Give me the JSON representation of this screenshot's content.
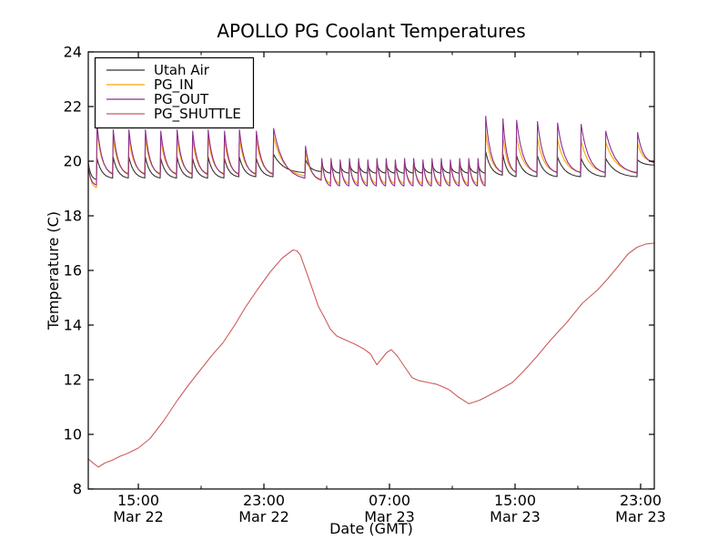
{
  "chart_data": {
    "type": "line",
    "title": "APOLLO PG Coolant Temperatures",
    "xlabel": "Date (GMT)",
    "ylabel": "Temperature (C)",
    "ylim": [
      8,
      24
    ],
    "xlim": [
      11.81,
      47.87
    ],
    "x_unit": "hours since Mar 22 00:00 GMT",
    "grid": false,
    "legend_position": "upper left",
    "yticks": [
      8,
      10,
      12,
      14,
      16,
      18,
      20,
      22,
      24
    ],
    "xticks": [
      {
        "t": 15,
        "time": "15:00",
        "date": "Mar 22"
      },
      {
        "t": 23,
        "time": "23:00",
        "date": "Mar 22"
      },
      {
        "t": 31,
        "time": "07:00",
        "date": "Mar 23"
      },
      {
        "t": 39,
        "time": "15:00",
        "date": "Mar 23"
      },
      {
        "t": 47,
        "time": "23:00",
        "date": "Mar 23"
      }
    ],
    "xminorticks": [
      19,
      27,
      35,
      43
    ],
    "series": [
      {
        "name": "Utah Air",
        "color": "#333333",
        "kind": "spiky",
        "start": [
          11.81,
          19.95,
          19.3
        ],
        "end": [
          47.87
        ],
        "spikes": [
          [
            12.33,
            20.1,
            19.35
          ],
          [
            13.36,
            20.15,
            19.35
          ],
          [
            14.36,
            20.15,
            19.35
          ],
          [
            15.41,
            20.15,
            19.35
          ],
          [
            16.39,
            20.1,
            19.35
          ],
          [
            17.43,
            20.15,
            19.35
          ],
          [
            18.42,
            20.1,
            19.35
          ],
          [
            19.41,
            20.15,
            19.35
          ],
          [
            20.45,
            20.1,
            19.4
          ],
          [
            21.4,
            20.15,
            19.4
          ],
          [
            22.48,
            20.1,
            19.4
          ],
          [
            23.58,
            20.25,
            19.55
          ],
          [
            25.61,
            20.05,
            19.6
          ],
          [
            26.65,
            19.9,
            19.55
          ],
          [
            27.24,
            19.9,
            19.55
          ],
          [
            27.82,
            19.85,
            19.55
          ],
          [
            28.41,
            19.9,
            19.55
          ],
          [
            28.99,
            19.9,
            19.55
          ],
          [
            29.58,
            19.85,
            19.55
          ],
          [
            30.16,
            19.9,
            19.55
          ],
          [
            30.75,
            19.9,
            19.55
          ],
          [
            31.33,
            19.85,
            19.55
          ],
          [
            31.92,
            19.9,
            19.55
          ],
          [
            32.5,
            19.9,
            19.55
          ],
          [
            33.09,
            19.85,
            19.55
          ],
          [
            33.67,
            19.9,
            19.55
          ],
          [
            34.26,
            19.9,
            19.55
          ],
          [
            34.84,
            19.85,
            19.55
          ],
          [
            35.43,
            19.9,
            19.55
          ],
          [
            36.01,
            19.9,
            19.55
          ],
          [
            36.6,
            19.9,
            19.55
          ],
          [
            37.09,
            20.35,
            19.45
          ],
          [
            38.19,
            20.25,
            19.4
          ],
          [
            39.06,
            20.2,
            19.4
          ],
          [
            40.39,
            20.2,
            19.4
          ],
          [
            41.67,
            20.15,
            19.4
          ],
          [
            43.17,
            20.1,
            19.4
          ],
          [
            44.74,
            20.1,
            19.4
          ],
          [
            46.77,
            20.05,
            19.85
          ]
        ]
      },
      {
        "name": "PG_IN",
        "color": "#ffa500",
        "kind": "spiky",
        "start": [
          11.81,
          19.85,
          19.0
        ],
        "end": [
          47.87
        ],
        "spikes": [
          [
            12.33,
            21.1,
            19.5
          ],
          [
            13.36,
            20.85,
            19.5
          ],
          [
            14.36,
            20.85,
            19.5
          ],
          [
            15.41,
            20.85,
            19.5
          ],
          [
            16.39,
            20.8,
            19.5
          ],
          [
            17.43,
            20.85,
            19.5
          ],
          [
            18.42,
            20.8,
            19.5
          ],
          [
            19.41,
            20.85,
            19.5
          ],
          [
            20.45,
            20.8,
            19.5
          ],
          [
            21.4,
            20.85,
            19.5
          ],
          [
            22.48,
            20.8,
            19.5
          ],
          [
            23.58,
            20.9,
            19.4
          ],
          [
            25.61,
            20.35,
            19.3
          ],
          [
            26.65,
            20.0,
            19.15
          ],
          [
            27.24,
            20.0,
            19.15
          ],
          [
            27.82,
            19.95,
            19.15
          ],
          [
            28.41,
            20.0,
            19.15
          ],
          [
            28.99,
            20.0,
            19.15
          ],
          [
            29.58,
            19.95,
            19.15
          ],
          [
            30.16,
            20.0,
            19.15
          ],
          [
            30.75,
            20.0,
            19.15
          ],
          [
            31.33,
            19.95,
            19.15
          ],
          [
            31.92,
            20.0,
            19.15
          ],
          [
            32.5,
            20.0,
            19.15
          ],
          [
            33.09,
            19.95,
            19.15
          ],
          [
            33.67,
            20.0,
            19.15
          ],
          [
            34.26,
            20.0,
            19.15
          ],
          [
            34.84,
            19.95,
            19.15
          ],
          [
            35.43,
            20.0,
            19.15
          ],
          [
            36.01,
            20.0,
            19.15
          ],
          [
            36.6,
            20.0,
            19.15
          ],
          [
            37.09,
            21.05,
            19.55
          ],
          [
            38.19,
            20.95,
            19.55
          ],
          [
            39.06,
            20.9,
            19.55
          ],
          [
            40.39,
            20.85,
            19.55
          ],
          [
            41.67,
            20.8,
            19.55
          ],
          [
            43.17,
            20.75,
            19.55
          ],
          [
            44.74,
            20.7,
            19.55
          ],
          [
            46.77,
            20.65,
            19.95
          ]
        ]
      },
      {
        "name": "PG_OUT",
        "color": "#8e2d8e",
        "kind": "spiky",
        "start": [
          11.81,
          19.8,
          19.1
        ],
        "end": [
          47.87
        ],
        "spikes": [
          [
            12.33,
            21.35,
            19.45
          ],
          [
            13.36,
            21.15,
            19.45
          ],
          [
            14.36,
            21.15,
            19.45
          ],
          [
            15.41,
            21.15,
            19.45
          ],
          [
            16.39,
            21.1,
            19.45
          ],
          [
            17.43,
            21.15,
            19.45
          ],
          [
            18.42,
            21.1,
            19.45
          ],
          [
            19.41,
            21.15,
            19.45
          ],
          [
            20.45,
            21.1,
            19.45
          ],
          [
            21.4,
            21.15,
            19.45
          ],
          [
            22.48,
            21.1,
            19.45
          ],
          [
            23.58,
            21.2,
            19.3
          ],
          [
            25.61,
            20.55,
            19.25
          ],
          [
            26.65,
            20.1,
            19.05
          ],
          [
            27.24,
            20.1,
            19.05
          ],
          [
            27.82,
            20.05,
            19.05
          ],
          [
            28.41,
            20.1,
            19.05
          ],
          [
            28.99,
            20.1,
            19.05
          ],
          [
            29.58,
            20.05,
            19.05
          ],
          [
            30.16,
            20.1,
            19.05
          ],
          [
            30.75,
            20.1,
            19.05
          ],
          [
            31.33,
            20.05,
            19.05
          ],
          [
            31.92,
            20.1,
            19.05
          ],
          [
            32.5,
            20.1,
            19.05
          ],
          [
            33.09,
            20.05,
            19.05
          ],
          [
            33.67,
            20.1,
            19.05
          ],
          [
            34.26,
            20.1,
            19.05
          ],
          [
            34.84,
            20.05,
            19.05
          ],
          [
            35.43,
            20.1,
            19.05
          ],
          [
            36.01,
            20.1,
            19.05
          ],
          [
            36.6,
            20.1,
            19.05
          ],
          [
            37.09,
            21.65,
            19.5
          ],
          [
            38.19,
            21.55,
            19.5
          ],
          [
            39.06,
            21.5,
            19.5
          ],
          [
            40.39,
            21.45,
            19.5
          ],
          [
            41.67,
            21.4,
            19.5
          ],
          [
            43.17,
            21.35,
            19.5
          ],
          [
            44.74,
            21.1,
            19.5
          ],
          [
            46.77,
            21.05,
            19.9
          ]
        ]
      },
      {
        "name": "PG_SHUTTLE",
        "color": "#cd5c5c",
        "kind": "smooth",
        "points": [
          [
            11.81,
            9.1
          ],
          [
            12.16,
            8.93
          ],
          [
            12.45,
            8.8
          ],
          [
            12.86,
            8.95
          ],
          [
            13.32,
            9.05
          ],
          [
            13.84,
            9.2
          ],
          [
            14.3,
            9.3
          ],
          [
            15.0,
            9.5
          ],
          [
            15.75,
            9.85
          ],
          [
            16.62,
            10.5
          ],
          [
            17.49,
            11.25
          ],
          [
            18.19,
            11.8
          ],
          [
            18.94,
            12.35
          ],
          [
            19.7,
            12.9
          ],
          [
            20.39,
            13.35
          ],
          [
            21.14,
            14.0
          ],
          [
            21.84,
            14.67
          ],
          [
            22.59,
            15.3
          ],
          [
            23.41,
            15.95
          ],
          [
            24.16,
            16.45
          ],
          [
            24.62,
            16.65
          ],
          [
            24.85,
            16.75
          ],
          [
            25.09,
            16.72
          ],
          [
            25.32,
            16.57
          ],
          [
            25.9,
            15.63
          ],
          [
            26.48,
            14.67
          ],
          [
            26.88,
            14.25
          ],
          [
            27.23,
            13.85
          ],
          [
            27.64,
            13.6
          ],
          [
            28.22,
            13.45
          ],
          [
            28.8,
            13.3
          ],
          [
            29.38,
            13.12
          ],
          [
            29.78,
            12.95
          ],
          [
            30.19,
            12.55
          ],
          [
            30.48,
            12.75
          ],
          [
            30.83,
            13.0
          ],
          [
            31.12,
            13.1
          ],
          [
            31.52,
            12.85
          ],
          [
            31.99,
            12.45
          ],
          [
            32.45,
            12.07
          ],
          [
            32.86,
            11.97
          ],
          [
            33.44,
            11.9
          ],
          [
            34.02,
            11.83
          ],
          [
            34.48,
            11.72
          ],
          [
            34.83,
            11.62
          ],
          [
            35.35,
            11.38
          ],
          [
            36.06,
            11.12
          ],
          [
            36.74,
            11.25
          ],
          [
            37.32,
            11.42
          ],
          [
            38.07,
            11.65
          ],
          [
            38.83,
            11.9
          ],
          [
            39.52,
            12.3
          ],
          [
            40.39,
            12.85
          ],
          [
            41.26,
            13.45
          ],
          [
            42.3,
            14.1
          ],
          [
            43.29,
            14.8
          ],
          [
            44.28,
            15.3
          ],
          [
            44.91,
            15.7
          ],
          [
            45.49,
            16.1
          ],
          [
            46.19,
            16.6
          ],
          [
            46.77,
            16.85
          ],
          [
            47.35,
            16.97
          ],
          [
            47.87,
            17.0
          ]
        ]
      }
    ]
  }
}
